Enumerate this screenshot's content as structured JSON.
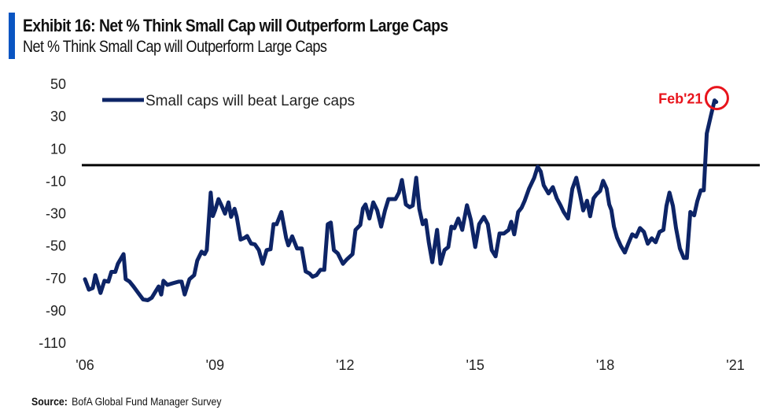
{
  "header": {
    "title": "Exhibit 16: Net % Think Small Cap will Outperform Large Caps",
    "subtitle": "Net % Think Small Cap will Outperform Large Caps"
  },
  "footer": {
    "source_label": "Source:",
    "source_text": "BofA Global Fund Manager Survey"
  },
  "colors": {
    "accent": "#0a55c2",
    "series": "#0d2466",
    "zero_line": "#000000",
    "annotation": "#e8141c"
  },
  "chart_data": {
    "type": "line",
    "title": "Exhibit 16: Net % Think Small Cap will Outperform Large Caps",
    "subtitle": "Net % Think Small Cap will Outperform Large Caps",
    "xlabel": "",
    "ylabel": "",
    "ylim": [
      -110,
      50
    ],
    "xlim": [
      2006.0,
      2021.0
    ],
    "yticks": [
      50,
      30,
      10,
      -10,
      -30,
      -50,
      -70,
      -90,
      -110
    ],
    "xticks": [
      {
        "value": 2006,
        "label": "'06"
      },
      {
        "value": 2009,
        "label": "'09"
      },
      {
        "value": 2012,
        "label": "'12"
      },
      {
        "value": 2015,
        "label": "'15"
      },
      {
        "value": 2018,
        "label": "'18"
      },
      {
        "value": 2021,
        "label": "'21"
      }
    ],
    "grid": false,
    "reference_line": {
      "y": 0
    },
    "legend": {
      "position": "top-left",
      "entries": [
        "Small caps will beat Large caps"
      ]
    },
    "annotation": {
      "text": "Feb'21",
      "x": 2020.5,
      "y": 40,
      "marker": "circle"
    },
    "series": [
      {
        "name": "Small caps will beat Large caps",
        "x": [
          2006.0,
          2006.09,
          2006.18,
          2006.24,
          2006.36,
          2006.45,
          2006.54,
          2006.61,
          2006.7,
          2006.76,
          2006.89,
          2006.94,
          2007.03,
          2007.12,
          2007.23,
          2007.34,
          2007.45,
          2007.54,
          2007.63,
          2007.7,
          2007.76,
          2007.81,
          2007.9,
          2008.03,
          2008.16,
          2008.23,
          2008.3,
          2008.41,
          2008.52,
          2008.59,
          2008.69,
          2008.76,
          2008.81,
          2008.9,
          2008.95,
          2009.0,
          2009.08,
          2009.15,
          2009.23,
          2009.31,
          2009.37,
          2009.45,
          2009.5,
          2009.59,
          2009.68,
          2009.74,
          2009.83,
          2009.92,
          2010.01,
          2010.1,
          2010.19,
          2010.28,
          2010.35,
          2010.42,
          2010.53,
          2010.64,
          2010.69,
          2010.78,
          2010.89,
          2011.0,
          2011.09,
          2011.18,
          2011.25,
          2011.34,
          2011.43,
          2011.52,
          2011.6,
          2011.67,
          2011.74,
          2011.83,
          2011.95,
          2012.03,
          2012.17,
          2012.24,
          2012.35,
          2012.41,
          2012.47,
          2012.56,
          2012.65,
          2012.74,
          2012.83,
          2012.92,
          2013.0,
          2013.08,
          2013.16,
          2013.24,
          2013.31,
          2013.4,
          2013.49,
          2013.56,
          2013.64,
          2013.71,
          2013.79,
          2013.86,
          2013.93,
          2014.01,
          2014.12,
          2014.2,
          2014.29,
          2014.38,
          2014.45,
          2014.52,
          2014.61,
          2014.7,
          2014.81,
          2014.9,
          2015.0,
          2015.09,
          2015.2,
          2015.29,
          2015.38,
          2015.47,
          2015.56,
          2015.66,
          2015.77,
          2015.83,
          2015.9,
          2015.99,
          2016.07,
          2016.14,
          2016.24,
          2016.36,
          2016.44,
          2016.51,
          2016.58,
          2016.69,
          2016.79,
          2016.88,
          2016.97,
          2017.04,
          2017.14,
          2017.24,
          2017.33,
          2017.42,
          2017.49,
          2017.58,
          2017.65,
          2017.73,
          2017.8,
          2017.88,
          2017.95,
          2018.03,
          2018.09,
          2018.14,
          2018.2,
          2018.27,
          2018.36,
          2018.45,
          2018.53,
          2018.62,
          2018.71,
          2018.8,
          2018.89,
          2018.98,
          2019.07,
          2019.16,
          2019.25,
          2019.34,
          2019.41,
          2019.48,
          2019.56,
          2019.63,
          2019.72,
          2019.81,
          2019.88,
          2019.96,
          2020.05,
          2020.12,
          2020.2,
          2020.27,
          2020.34,
          2020.43,
          2020.52,
          2020.56
        ],
        "values": [
          -70.5,
          -77,
          -76,
          -68,
          -79,
          -71.5,
          -72,
          -66,
          -66,
          -61,
          -55,
          -70.5,
          -72,
          -75,
          -79,
          -83,
          -83.5,
          -82,
          -78,
          -75,
          -80,
          -71.5,
          -74,
          -73,
          -72,
          -72,
          -80,
          -70.5,
          -68,
          -59,
          -53.5,
          -55,
          -52.5,
          -17,
          -31.5,
          -28,
          -21,
          -25,
          -30,
          -23,
          -32,
          -27,
          -32,
          -46,
          -45,
          -43.8,
          -48.5,
          -49,
          -52.5,
          -61,
          -52.5,
          -52,
          -36.5,
          -36.5,
          -29,
          -45,
          -49.6,
          -44,
          -51.5,
          -51.5,
          -65.7,
          -67,
          -69,
          -68,
          -64.7,
          -64.7,
          -36.5,
          -35.5,
          -52.5,
          -54.5,
          -61,
          -58.5,
          -55,
          -40,
          -37,
          -26.8,
          -24.3,
          -33,
          -23,
          -28,
          -38,
          -28,
          -21,
          -21,
          -21,
          -17,
          -9.2,
          -24.3,
          -26,
          -25,
          -7.8,
          -27,
          -36.5,
          -34,
          -47.7,
          -60,
          -40,
          -61,
          -52.5,
          -50.6,
          -38,
          -39,
          -33,
          -40,
          -24.8,
          -34,
          -50.6,
          -36.5,
          -32,
          -36.5,
          -52.5,
          -56.4,
          -42.3,
          -42.3,
          -40,
          -35,
          -42.8,
          -29,
          -26.3,
          -22,
          -14.6,
          -7.8,
          -1,
          -4,
          -12.5,
          -17.5,
          -13.6,
          -20.5,
          -25,
          -29,
          -33,
          -14.6,
          -7.8,
          -18.5,
          -28,
          -22,
          -31.6,
          -20.5,
          -18,
          -16,
          -9.7,
          -14.6,
          -24.3,
          -27.7,
          -38,
          -44.7,
          -50,
          -54,
          -48.6,
          -42.8,
          -44.3,
          -38.9,
          -41.3,
          -48.6,
          -45.2,
          -47.7,
          -41.3,
          -40,
          -25.3,
          -17,
          -25.3,
          -38.9,
          -51.5,
          -57.4,
          -57.4,
          -29,
          -31,
          -22.4,
          -15.6,
          -15.6,
          19.5,
          30,
          40,
          39
        ]
      }
    ]
  }
}
